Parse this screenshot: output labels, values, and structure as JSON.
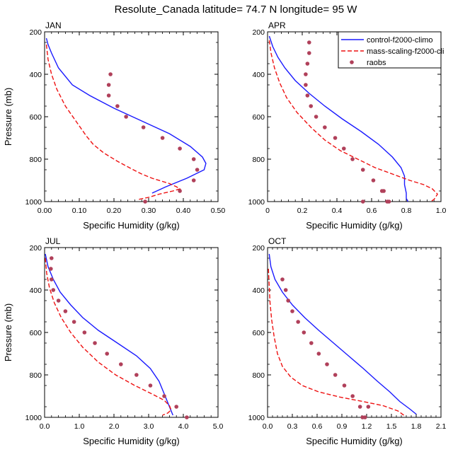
{
  "title": "Resolute_Canada  latitude= 74.7 N longitude= 95 W",
  "legend": {
    "items": [
      {
        "label": "control-f2000-climo",
        "style": "solid",
        "color": "#1a1aff"
      },
      {
        "label": "mass-scaling-f2000-cli",
        "style": "dashed",
        "color": "#ee1111"
      },
      {
        "label": "raobs",
        "style": "dot",
        "color": "#b0405a"
      }
    ]
  },
  "colors": {
    "control": "#1a1aff",
    "mass_scaling": "#ee1111",
    "raobs": "#b0405a"
  },
  "chart_data": [
    {
      "type": "line",
      "panel": "JAN",
      "xlabel": "Specific Humidity (g/kg)",
      "ylabel": "Pressure (mb)",
      "xlim": [
        0,
        0.5
      ],
      "ylim": [
        1000,
        200
      ],
      "xticks": [
        "0.00",
        "0.10",
        "0.20",
        "0.30",
        "0.40",
        "0.50"
      ],
      "xtick_values": [
        0,
        0.1,
        0.2,
        0.3,
        0.4,
        0.5
      ],
      "yticks": [
        "200",
        "400",
        "600",
        "800",
        "1000"
      ],
      "ytick_values": [
        200,
        400,
        600,
        800,
        1000
      ],
      "series": [
        {
          "name": "control-f2000-climo",
          "style": "solid",
          "x": [
            0.005,
            0.01,
            0.02,
            0.04,
            0.08,
            0.13,
            0.2,
            0.28,
            0.36,
            0.42,
            0.455,
            0.465,
            0.46,
            0.41,
            0.35,
            0.31
          ],
          "y": [
            230,
            260,
            300,
            370,
            450,
            500,
            560,
            620,
            680,
            740,
            790,
            820,
            850,
            890,
            930,
            960
          ]
        },
        {
          "name": "mass-scaling-f2000-cli",
          "style": "dashed",
          "x": [
            0.005,
            0.01,
            0.02,
            0.035,
            0.06,
            0.09,
            0.12,
            0.14,
            0.17,
            0.21,
            0.25,
            0.28,
            0.31,
            0.34,
            0.36,
            0.38,
            0.39,
            0.37,
            0.33,
            0.3,
            0.27
          ],
          "y": [
            260,
            330,
            400,
            470,
            550,
            620,
            690,
            730,
            770,
            810,
            845,
            870,
            890,
            905,
            915,
            930,
            940,
            950,
            965,
            980,
            990
          ]
        },
        {
          "name": "raobs",
          "style": "dot",
          "x": [
            0.19,
            0.185,
            0.185,
            0.21,
            0.235,
            0.285,
            0.34,
            0.39,
            0.43,
            0.44,
            0.43,
            0.39,
            0.29
          ],
          "y": [
            400,
            450,
            500,
            550,
            600,
            650,
            700,
            750,
            800,
            850,
            900,
            950,
            1000
          ]
        }
      ]
    },
    {
      "type": "line",
      "panel": "APR",
      "xlabel": "Specific Humidity (g/kg)",
      "ylabel": "Pressure (mb)",
      "xlim": [
        0,
        1.0
      ],
      "ylim": [
        1000,
        200
      ],
      "xticks": [
        "0",
        "0.2",
        "0.4",
        "0.6",
        "0.8",
        "1.0"
      ],
      "xtick_values": [
        0,
        0.2,
        0.4,
        0.6,
        0.8,
        1.0
      ],
      "yticks": [
        "200",
        "400",
        "600",
        "800",
        "1000"
      ],
      "ytick_values": [
        200,
        400,
        600,
        800,
        1000
      ],
      "series": [
        {
          "name": "control-f2000-climo",
          "style": "solid",
          "x": [
            0.01,
            0.03,
            0.06,
            0.1,
            0.16,
            0.24,
            0.33,
            0.43,
            0.54,
            0.64,
            0.72,
            0.77,
            0.79,
            0.79,
            0.8,
            0.8,
            0.81
          ],
          "y": [
            220,
            270,
            320,
            370,
            430,
            490,
            550,
            610,
            670,
            730,
            790,
            840,
            880,
            920,
            960,
            985,
            1000
          ]
        },
        {
          "name": "mass-scaling-f2000-cli",
          "style": "dashed",
          "x": [
            0.01,
            0.02,
            0.04,
            0.07,
            0.11,
            0.17,
            0.25,
            0.33,
            0.42,
            0.52,
            0.62,
            0.72,
            0.82,
            0.9,
            0.95,
            0.98,
            0.96,
            0.94
          ],
          "y": [
            240,
            300,
            370,
            440,
            510,
            580,
            650,
            710,
            760,
            800,
            840,
            870,
            900,
            920,
            940,
            965,
            990,
            1000
          ]
        },
        {
          "name": "raobs",
          "style": "dot",
          "x": [
            0.24,
            0.24,
            0.23,
            0.22,
            0.22,
            0.23,
            0.25,
            0.28,
            0.33,
            0.39,
            0.44,
            0.49,
            0.55,
            0.61,
            0.67,
            0.69,
            0.7,
            0.66,
            0.55
          ],
          "y": [
            250,
            300,
            350,
            400,
            450,
            500,
            550,
            600,
            650,
            700,
            750,
            800,
            850,
            900,
            950,
            1000,
            1000,
            950,
            1000
          ]
        }
      ]
    },
    {
      "type": "line",
      "panel": "JUL",
      "xlabel": "Specific Humidity (g/kg)",
      "ylabel": "Pressure (mb)",
      "xlim": [
        0,
        5.0
      ],
      "ylim": [
        1000,
        200
      ],
      "xticks": [
        "0.0",
        "1.0",
        "2.0",
        "3.0",
        "4.0",
        "5.0"
      ],
      "xtick_values": [
        0,
        1,
        2,
        3,
        4,
        5
      ],
      "yticks": [
        "200",
        "400",
        "600",
        "800",
        "1000"
      ],
      "ytick_values": [
        200,
        400,
        600,
        800,
        1000
      ],
      "series": [
        {
          "name": "control-f2000-climo",
          "style": "solid",
          "x": [
            0.02,
            0.1,
            0.25,
            0.45,
            0.75,
            1.1,
            1.55,
            2.1,
            2.65,
            3.05,
            3.3,
            3.45,
            3.6,
            3.7
          ],
          "y": [
            230,
            290,
            350,
            410,
            470,
            530,
            590,
            650,
            710,
            770,
            830,
            890,
            950,
            990
          ]
        },
        {
          "name": "mass-scaling-f2000-cli",
          "style": "dashed",
          "x": [
            0.02,
            0.06,
            0.14,
            0.28,
            0.48,
            0.75,
            1.1,
            1.55,
            2.05,
            2.6,
            3.1,
            3.45,
            3.6,
            3.65,
            3.55,
            3.4
          ],
          "y": [
            250,
            320,
            390,
            460,
            530,
            600,
            670,
            740,
            800,
            850,
            890,
            920,
            945,
            965,
            980,
            990
          ]
        },
        {
          "name": "raobs",
          "style": "dot",
          "x": [
            0.2,
            0.18,
            0.2,
            0.25,
            0.4,
            0.6,
            0.85,
            1.15,
            1.45,
            1.8,
            2.2,
            2.65,
            3.05,
            3.45,
            3.8,
            4.1
          ],
          "y": [
            250,
            300,
            350,
            400,
            450,
            500,
            550,
            600,
            650,
            700,
            750,
            800,
            850,
            900,
            950,
            1000
          ]
        }
      ]
    },
    {
      "type": "line",
      "panel": "OCT",
      "xlabel": "Specific Humidity (g/kg)",
      "ylabel": "Pressure (mb)",
      "xlim": [
        0,
        2.1
      ],
      "ylim": [
        1000,
        200
      ],
      "xticks": [
        "0.0",
        "0.3",
        "0.6",
        "0.9",
        "1.2",
        "1.5",
        "1.8",
        "2.1"
      ],
      "xtick_values": [
        0,
        0.3,
        0.6,
        0.9,
        1.2,
        1.5,
        1.8,
        2.1
      ],
      "yticks": [
        "200",
        "400",
        "600",
        "800",
        "1000"
      ],
      "ytick_values": [
        200,
        400,
        600,
        800,
        1000
      ],
      "series": [
        {
          "name": "control-f2000-climo",
          "style": "solid",
          "x": [
            0.02,
            0.04,
            0.09,
            0.18,
            0.3,
            0.45,
            0.62,
            0.8,
            0.98,
            1.16,
            1.33,
            1.48,
            1.6,
            1.72,
            1.8
          ],
          "y": [
            230,
            290,
            350,
            410,
            470,
            530,
            590,
            650,
            710,
            770,
            830,
            880,
            925,
            960,
            985
          ]
        },
        {
          "name": "mass-scaling-f2000-cli",
          "style": "dashed",
          "x": [
            0.01,
            0.02,
            0.03,
            0.05,
            0.08,
            0.12,
            0.18,
            0.28,
            0.42,
            0.62,
            0.88,
            1.15,
            1.4,
            1.58,
            1.65
          ],
          "y": [
            300,
            380,
            460,
            540,
            620,
            700,
            760,
            810,
            850,
            880,
            905,
            925,
            945,
            970,
            990
          ]
        },
        {
          "name": "raobs",
          "style": "dot",
          "x": [
            0.18,
            0.22,
            0.25,
            0.3,
            0.37,
            0.44,
            0.53,
            0.62,
            0.72,
            0.82,
            0.93,
            1.03,
            1.12,
            1.18,
            1.22,
            1.15
          ],
          "y": [
            350,
            400,
            450,
            500,
            550,
            600,
            650,
            700,
            750,
            800,
            850,
            900,
            950,
            1000,
            950,
            1000
          ]
        }
      ]
    }
  ]
}
